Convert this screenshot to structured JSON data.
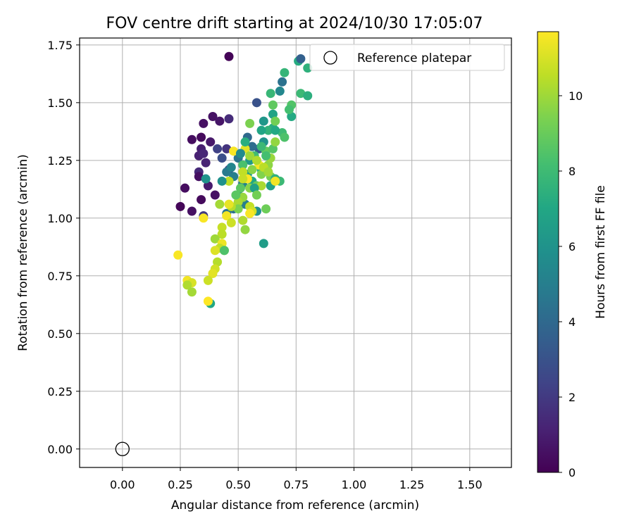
{
  "chart_data": {
    "type": "scatter",
    "title": "FOV centre drift starting at 2024/10/30 17:05:07",
    "xlabel": "Angular distance from reference (arcmin)",
    "ylabel": "Rotation from reference (arcmin)",
    "xlim": [
      -0.185,
      1.68
    ],
    "ylim": [
      -0.08,
      1.78
    ],
    "xticks": [
      0.0,
      0.25,
      0.5,
      0.75,
      1.0,
      1.25,
      1.5
    ],
    "xtick_labels": [
      "0.00",
      "0.25",
      "0.50",
      "0.75",
      "1.00",
      "1.25",
      "1.50"
    ],
    "yticks": [
      0.0,
      0.25,
      0.5,
      0.75,
      1.0,
      1.25,
      1.5,
      1.75
    ],
    "ytick_labels": [
      "0.00",
      "0.25",
      "0.50",
      "0.75",
      "1.00",
      "1.25",
      "1.50",
      "1.75"
    ],
    "grid": true,
    "legend": {
      "position": "top-right",
      "entries": [
        {
          "label": "Reference platepar",
          "marker": "open-circle"
        }
      ]
    },
    "reference_point": {
      "x": 0.0,
      "y": 0.0
    },
    "colorbar": {
      "label": "Hours from first FF file",
      "colormap": "viridis",
      "range": [
        0,
        11.7
      ],
      "ticks": [
        0,
        2,
        4,
        6,
        8,
        10
      ],
      "tick_labels": [
        "0",
        "2",
        "4",
        "6",
        "8",
        "10"
      ]
    },
    "points": [
      {
        "x": 0.46,
        "y": 1.7,
        "c": 0.1
      },
      {
        "x": 0.34,
        "y": 1.35,
        "c": 0.3
      },
      {
        "x": 0.3,
        "y": 1.34,
        "c": 0.4
      },
      {
        "x": 0.35,
        "y": 1.41,
        "c": 0.5
      },
      {
        "x": 0.39,
        "y": 1.44,
        "c": 0.6
      },
      {
        "x": 0.42,
        "y": 1.42,
        "c": 0.7
      },
      {
        "x": 0.38,
        "y": 1.33,
        "c": 0.8
      },
      {
        "x": 0.34,
        "y": 1.3,
        "c": 1.0
      },
      {
        "x": 0.33,
        "y": 1.27,
        "c": 1.1
      },
      {
        "x": 0.36,
        "y": 1.24,
        "c": 1.2
      },
      {
        "x": 0.35,
        "y": 1.28,
        "c": 1.3
      },
      {
        "x": 0.33,
        "y": 1.2,
        "c": 1.4
      },
      {
        "x": 0.33,
        "y": 1.18,
        "c": 0.5
      },
      {
        "x": 0.27,
        "y": 1.13,
        "c": 0.4
      },
      {
        "x": 0.37,
        "y": 1.14,
        "c": 0.9
      },
      {
        "x": 0.4,
        "y": 1.1,
        "c": 0.6
      },
      {
        "x": 0.34,
        "y": 1.08,
        "c": 0.3
      },
      {
        "x": 0.25,
        "y": 1.05,
        "c": 0.2
      },
      {
        "x": 0.3,
        "y": 1.03,
        "c": 0.5
      },
      {
        "x": 0.35,
        "y": 1.01,
        "c": 2.0
      },
      {
        "x": 0.46,
        "y": 1.43,
        "c": 1.5
      },
      {
        "x": 0.41,
        "y": 1.3,
        "c": 2.3
      },
      {
        "x": 0.43,
        "y": 1.26,
        "c": 2.8
      },
      {
        "x": 0.46,
        "y": 1.21,
        "c": 2.6
      },
      {
        "x": 0.45,
        "y": 1.3,
        "c": 1.8
      },
      {
        "x": 0.58,
        "y": 1.5,
        "c": 3.0
      },
      {
        "x": 0.59,
        "y": 1.3,
        "c": 3.5
      },
      {
        "x": 0.54,
        "y": 1.35,
        "c": 4.0
      },
      {
        "x": 0.56,
        "y": 1.31,
        "c": 4.2
      },
      {
        "x": 0.5,
        "y": 1.26,
        "c": 4.5
      },
      {
        "x": 0.45,
        "y": 1.2,
        "c": 4.8
      },
      {
        "x": 0.48,
        "y": 1.18,
        "c": 5.0
      },
      {
        "x": 0.52,
        "y": 1.15,
        "c": 5.2
      },
      {
        "x": 0.5,
        "y": 1.1,
        "c": 5.5
      },
      {
        "x": 0.53,
        "y": 1.06,
        "c": 5.0
      },
      {
        "x": 0.48,
        "y": 1.04,
        "c": 4.3
      },
      {
        "x": 0.45,
        "y": 1.02,
        "c": 4.6
      },
      {
        "x": 0.58,
        "y": 1.03,
        "c": 5.8
      },
      {
        "x": 0.61,
        "y": 0.89,
        "c": 6.5
      },
      {
        "x": 0.36,
        "y": 1.17,
        "c": 6.0
      },
      {
        "x": 0.38,
        "y": 0.63,
        "c": 7.0
      },
      {
        "x": 0.61,
        "y": 1.42,
        "c": 6.2
      },
      {
        "x": 0.65,
        "y": 1.45,
        "c": 6.8
      },
      {
        "x": 0.68,
        "y": 1.55,
        "c": 5.4
      },
      {
        "x": 0.69,
        "y": 1.59,
        "c": 4.4
      },
      {
        "x": 0.7,
        "y": 1.63,
        "c": 7.7
      },
      {
        "x": 0.76,
        "y": 1.68,
        "c": 7.2
      },
      {
        "x": 0.77,
        "y": 1.69,
        "c": 3.6
      },
      {
        "x": 0.8,
        "y": 1.65,
        "c": 7.5
      },
      {
        "x": 0.77,
        "y": 1.54,
        "c": 7.9
      },
      {
        "x": 0.8,
        "y": 1.53,
        "c": 7.4
      },
      {
        "x": 0.73,
        "y": 1.49,
        "c": 8.5
      },
      {
        "x": 0.73,
        "y": 1.44,
        "c": 7.1
      },
      {
        "x": 0.72,
        "y": 1.47,
        "c": 8.2
      },
      {
        "x": 0.65,
        "y": 1.39,
        "c": 7.3
      },
      {
        "x": 0.69,
        "y": 1.37,
        "c": 8.0
      },
      {
        "x": 0.7,
        "y": 1.35,
        "c": 8.4
      },
      {
        "x": 0.64,
        "y": 1.54,
        "c": 7.8
      },
      {
        "x": 0.65,
        "y": 1.49,
        "c": 8.8
      },
      {
        "x": 0.66,
        "y": 1.42,
        "c": 9.2
      },
      {
        "x": 0.63,
        "y": 1.38,
        "c": 7.6
      },
      {
        "x": 0.6,
        "y": 1.38,
        "c": 6.9
      },
      {
        "x": 0.62,
        "y": 1.29,
        "c": 8.9
      },
      {
        "x": 0.65,
        "y": 1.3,
        "c": 8.6
      },
      {
        "x": 0.6,
        "y": 1.21,
        "c": 7.3
      },
      {
        "x": 0.55,
        "y": 1.25,
        "c": 6.3
      },
      {
        "x": 0.57,
        "y": 1.27,
        "c": 8.1
      },
      {
        "x": 0.52,
        "y": 1.23,
        "c": 8.3
      },
      {
        "x": 0.54,
        "y": 1.19,
        "c": 6.6
      },
      {
        "x": 0.56,
        "y": 1.16,
        "c": 7.0
      },
      {
        "x": 0.58,
        "y": 1.14,
        "c": 9.0
      },
      {
        "x": 0.6,
        "y": 1.19,
        "c": 9.5
      },
      {
        "x": 0.63,
        "y": 1.23,
        "c": 9.7
      },
      {
        "x": 0.64,
        "y": 1.18,
        "c": 9.3
      },
      {
        "x": 0.66,
        "y": 1.17,
        "c": 7.4
      },
      {
        "x": 0.68,
        "y": 1.16,
        "c": 7.9
      },
      {
        "x": 0.64,
        "y": 1.14,
        "c": 6.7
      },
      {
        "x": 0.55,
        "y": 1.13,
        "c": 9.6
      },
      {
        "x": 0.51,
        "y": 1.13,
        "c": 8.7
      },
      {
        "x": 0.52,
        "y": 1.09,
        "c": 9.9
      },
      {
        "x": 0.5,
        "y": 1.07,
        "c": 10.2
      },
      {
        "x": 0.55,
        "y": 1.05,
        "c": 10.6
      },
      {
        "x": 0.56,
        "y": 1.03,
        "c": 10.9
      },
      {
        "x": 0.5,
        "y": 1.04,
        "c": 9.4
      },
      {
        "x": 0.47,
        "y": 1.05,
        "c": 10.4
      },
      {
        "x": 0.46,
        "y": 1.06,
        "c": 11.3
      },
      {
        "x": 0.42,
        "y": 1.06,
        "c": 10.1
      },
      {
        "x": 0.45,
        "y": 1.01,
        "c": 11.5
      },
      {
        "x": 0.47,
        "y": 0.98,
        "c": 10.8
      },
      {
        "x": 0.52,
        "y": 0.99,
        "c": 10.3
      },
      {
        "x": 0.53,
        "y": 0.95,
        "c": 9.8
      },
      {
        "x": 0.35,
        "y": 1.0,
        "c": 11.6
      },
      {
        "x": 0.43,
        "y": 0.96,
        "c": 10.7
      },
      {
        "x": 0.43,
        "y": 0.93,
        "c": 10.5
      },
      {
        "x": 0.4,
        "y": 0.91,
        "c": 10.0
      },
      {
        "x": 0.43,
        "y": 0.89,
        "c": 11.4
      },
      {
        "x": 0.44,
        "y": 0.86,
        "c": 9.7
      },
      {
        "x": 0.42,
        "y": 0.87,
        "c": 10.6
      },
      {
        "x": 0.4,
        "y": 0.86,
        "c": 11.1
      },
      {
        "x": 0.41,
        "y": 0.81,
        "c": 10.4
      },
      {
        "x": 0.4,
        "y": 0.78,
        "c": 10.9
      },
      {
        "x": 0.39,
        "y": 0.76,
        "c": 11.2
      },
      {
        "x": 0.24,
        "y": 0.84,
        "c": 11.6
      },
      {
        "x": 0.37,
        "y": 0.73,
        "c": 10.8
      },
      {
        "x": 0.28,
        "y": 0.73,
        "c": 11.5
      },
      {
        "x": 0.3,
        "y": 0.72,
        "c": 11.0
      },
      {
        "x": 0.28,
        "y": 0.71,
        "c": 10.3
      },
      {
        "x": 0.3,
        "y": 0.68,
        "c": 10.1
      },
      {
        "x": 0.37,
        "y": 0.64,
        "c": 11.7
      },
      {
        "x": 0.48,
        "y": 1.29,
        "c": 11.6
      },
      {
        "x": 0.53,
        "y": 1.3,
        "c": 11.2
      },
      {
        "x": 0.55,
        "y": 1.27,
        "c": 10.0
      },
      {
        "x": 0.59,
        "y": 1.23,
        "c": 11.6
      },
      {
        "x": 0.61,
        "y": 1.22,
        "c": 10.5
      },
      {
        "x": 0.6,
        "y": 1.14,
        "c": 10.2
      },
      {
        "x": 0.57,
        "y": 1.13,
        "c": 11.1
      },
      {
        "x": 0.54,
        "y": 1.17,
        "c": 11.7
      },
      {
        "x": 0.52,
        "y": 1.2,
        "c": 10.6
      },
      {
        "x": 0.56,
        "y": 1.21,
        "c": 9.6
      },
      {
        "x": 0.66,
        "y": 1.16,
        "c": 11.5
      },
      {
        "x": 0.62,
        "y": 1.04,
        "c": 9.1
      },
      {
        "x": 0.55,
        "y": 1.41,
        "c": 9.4
      },
      {
        "x": 0.66,
        "y": 1.33,
        "c": 9.8
      },
      {
        "x": 0.64,
        "y": 1.26,
        "c": 9.9
      },
      {
        "x": 0.63,
        "y": 1.2,
        "c": 10.1
      },
      {
        "x": 0.58,
        "y": 1.25,
        "c": 10.3
      },
      {
        "x": 0.46,
        "y": 1.16,
        "c": 10.6
      },
      {
        "x": 0.52,
        "y": 1.17,
        "c": 10.7
      },
      {
        "x": 0.55,
        "y": 1.02,
        "c": 11.6
      },
      {
        "x": 0.49,
        "y": 1.1,
        "c": 8.7
      },
      {
        "x": 0.53,
        "y": 1.33,
        "c": 7.3
      },
      {
        "x": 0.43,
        "y": 1.16,
        "c": 5.9
      },
      {
        "x": 0.47,
        "y": 1.22,
        "c": 5.3
      },
      {
        "x": 0.51,
        "y": 1.28,
        "c": 5.6
      },
      {
        "x": 0.61,
        "y": 1.33,
        "c": 6.0
      },
      {
        "x": 0.62,
        "y": 1.27,
        "c": 8.2
      },
      {
        "x": 0.66,
        "y": 1.38,
        "c": 7.1
      },
      {
        "x": 0.44,
        "y": 0.86,
        "c": 8.4
      },
      {
        "x": 0.57,
        "y": 1.13,
        "c": 6.7
      },
      {
        "x": 0.6,
        "y": 1.31,
        "c": 7.9
      },
      {
        "x": 0.58,
        "y": 1.1,
        "c": 9.2
      }
    ]
  }
}
